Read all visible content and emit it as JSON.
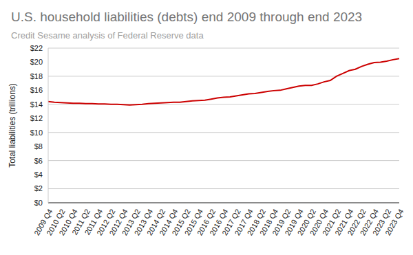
{
  "chart_data": {
    "type": "line",
    "title": "U.S. household liabilities (debts) end 2009 through end 2023",
    "subtitle": "Credit Sesame analysis of Federal Reserve data",
    "y_label": "Total liabilities (trillions)",
    "categories": [
      "2009 Q4",
      null,
      "2010 Q2",
      null,
      "2010 Q4",
      null,
      "2011 Q2",
      null,
      "2011 Q4",
      null,
      "2012 Q2",
      null,
      "2012 Q4",
      null,
      "2013 Q2",
      null,
      "2013 Q4",
      null,
      "2014 Q2",
      null,
      "2014 Q4",
      null,
      "2015 Q2",
      null,
      "2015 Q4",
      null,
      "2016 Q2",
      null,
      "2016 Q4",
      null,
      "2017 Q2",
      null,
      "2017 Q4",
      null,
      "2018 Q2",
      null,
      "2018 Q4",
      null,
      "2019 Q2",
      null,
      "2019 Q4",
      null,
      "2020 Q2",
      null,
      "2020 Q4",
      null,
      "2021 Q2",
      null,
      "2021 Q4",
      null,
      "2022 Q2",
      null,
      "2022 Q4",
      null,
      "2023 Q2",
      null,
      "2023 Q4"
    ],
    "values": [
      14.4,
      14.3,
      14.25,
      14.2,
      14.15,
      14.15,
      14.1,
      14.1,
      14.05,
      14.05,
      14.0,
      14.0,
      13.95,
      13.9,
      13.95,
      14.0,
      14.1,
      14.15,
      14.2,
      14.25,
      14.3,
      14.3,
      14.4,
      14.5,
      14.55,
      14.6,
      14.75,
      14.9,
      15.0,
      15.05,
      15.2,
      15.35,
      15.5,
      15.55,
      15.7,
      15.85,
      15.95,
      16.0,
      16.2,
      16.4,
      16.6,
      16.7,
      16.7,
      16.9,
      17.2,
      17.4,
      18.0,
      18.4,
      18.8,
      19.0,
      19.4,
      19.7,
      19.95,
      20.0,
      20.15,
      20.35,
      20.5
    ],
    "color": "#cc0000",
    "ylim": [
      0,
      22
    ],
    "yticks": [
      {
        "value": 0,
        "label": "$0"
      },
      {
        "value": 2,
        "label": "$2"
      },
      {
        "value": 4,
        "label": "$4"
      },
      {
        "value": 6,
        "label": "$6"
      },
      {
        "value": 8,
        "label": "$8"
      },
      {
        "value": 10,
        "label": "$10"
      },
      {
        "value": 12,
        "label": "$12"
      },
      {
        "value": 14,
        "label": "$14"
      },
      {
        "value": 16,
        "label": "$16"
      },
      {
        "value": 18,
        "label": "$18"
      },
      {
        "value": 20,
        "label": "$20"
      },
      {
        "value": 22,
        "label": "$22"
      }
    ],
    "grid": true
  }
}
